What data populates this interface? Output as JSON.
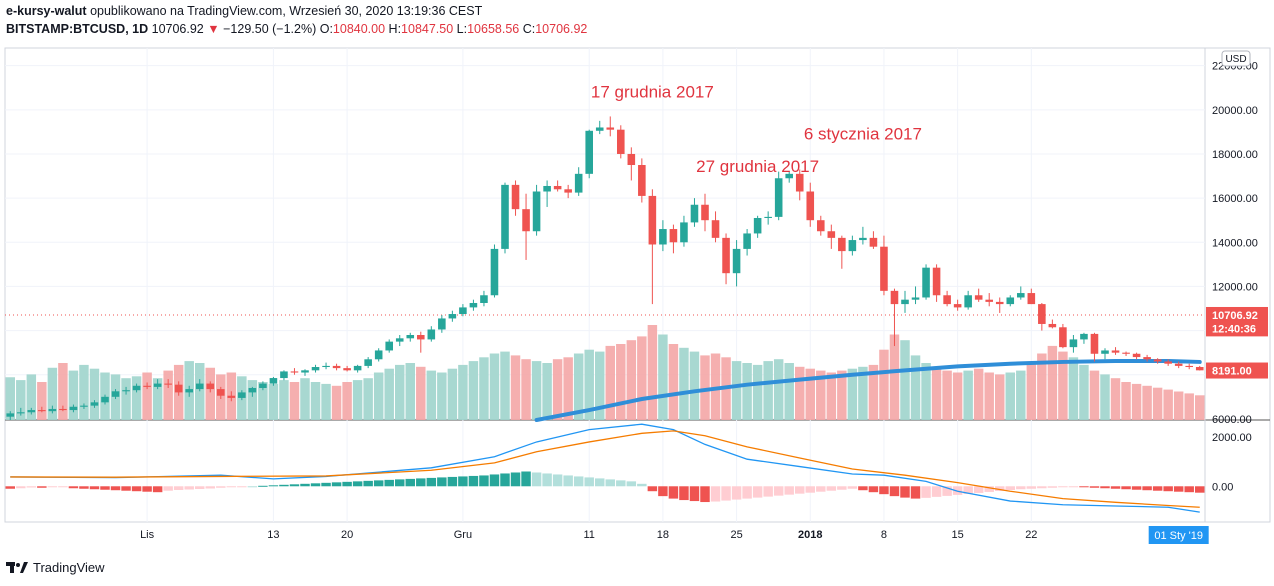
{
  "header": {
    "publisher": "e-kursy-walut",
    "published_on": "opublikowano na TradingView.com, Wrzesień 30, 2020 13:19:36 CEST",
    "symbol": "BITSTAMP:BTCUSD, 1D",
    "last": "10706.92",
    "change": "−129.50 (−1.2%)",
    "o_label": "O:",
    "o": "10840.00",
    "h_label": "H:",
    "h": "10847.50",
    "l_label": "L:",
    "l": "10658.56",
    "c_label": "C:",
    "c": "10706.92"
  },
  "footer": {
    "brand": "TradingView"
  },
  "colors": {
    "up": "#26a69a",
    "down": "#ef5350",
    "ma": "#2f8ed8",
    "macd": "#2196f3",
    "signal": "#f57c00",
    "annotation": "#e0343f"
  },
  "chart_data": {
    "type": "candlestick",
    "currency_badge": "USD",
    "price_ticks": [
      "6000.00",
      "8000.00",
      "10000.00",
      "12000.00",
      "14000.00",
      "16000.00",
      "18000.00",
      "20000.00",
      "22000.00"
    ],
    "price_tick_values": [
      6000,
      8000,
      10000,
      12000,
      14000,
      16000,
      18000,
      20000,
      22000
    ],
    "price_range": [
      5950,
      22800
    ],
    "price_labels": [
      {
        "text": "10706.92",
        "value": 10706.92,
        "color": "#ef5350"
      },
      {
        "text": "12:40:36",
        "value": 10100,
        "color": "#ef5350"
      },
      {
        "text": "8191.00",
        "value": 8191,
        "color": "#ef5350"
      }
    ],
    "macd_ticks": [
      "2000.00",
      "0.00"
    ],
    "macd_tick_values": [
      2000,
      0
    ],
    "macd_range": [
      -1450,
      2650
    ],
    "x_ticks": [
      {
        "text": "Lis",
        "index": 13
      },
      {
        "text": "13",
        "index": 25
      },
      {
        "text": "20",
        "index": 32
      },
      {
        "text": "Gru",
        "index": 43
      },
      {
        "text": "11",
        "index": 55
      },
      {
        "text": "18",
        "index": 62
      },
      {
        "text": "25",
        "index": 69
      },
      {
        "text": "2018",
        "index": 76,
        "bold": true
      },
      {
        "text": "8",
        "index": 83
      },
      {
        "text": "15",
        "index": 90
      },
      {
        "text": "22",
        "index": 97
      }
    ],
    "cursor_label": {
      "text": "01 Sty '19",
      "index": 111
    },
    "annotations": [
      {
        "text": "17 grudnia 2017",
        "index": 61,
        "value": 20550
      },
      {
        "text": "27 grudnia 2017",
        "index": 71,
        "value": 17180
      },
      {
        "text": "6 stycznia 2017",
        "index": 81,
        "value": 18650
      }
    ],
    "candles": [
      [
        6100,
        6350,
        5950,
        6250
      ],
      [
        6250,
        6500,
        6150,
        6300
      ],
      [
        6300,
        6500,
        6200,
        6400
      ],
      [
        6400,
        6550,
        6300,
        6350
      ],
      [
        6350,
        6600,
        6250,
        6450
      ],
      [
        6450,
        6600,
        6350,
        6400
      ],
      [
        6400,
        6650,
        6300,
        6550
      ],
      [
        6550,
        6700,
        6450,
        6600
      ],
      [
        6600,
        6850,
        6500,
        6750
      ],
      [
        6750,
        7100,
        6650,
        7000
      ],
      [
        7000,
        7350,
        6900,
        7250
      ],
      [
        7250,
        7450,
        7100,
        7300
      ],
      [
        7300,
        7600,
        7200,
        7500
      ],
      [
        7500,
        7650,
        7350,
        7450
      ],
      [
        7450,
        7800,
        7350,
        7600
      ],
      [
        7600,
        7800,
        7400,
        7550
      ],
      [
        7550,
        7700,
        7050,
        7200
      ],
      [
        7200,
        7500,
        7000,
        7350
      ],
      [
        7350,
        7800,
        7250,
        7600
      ],
      [
        7600,
        7700,
        7200,
        7350
      ],
      [
        7350,
        7450,
        6900,
        7050
      ],
      [
        7050,
        7250,
        6800,
        6950
      ],
      [
        6950,
        7300,
        6850,
        7200
      ],
      [
        7200,
        7450,
        7000,
        7400
      ],
      [
        7400,
        7700,
        7300,
        7600
      ],
      [
        7600,
        7900,
        7500,
        7850
      ],
      [
        7850,
        8200,
        7750,
        8150
      ],
      [
        8150,
        8300,
        8000,
        8100
      ],
      [
        8100,
        8250,
        7950,
        8200
      ],
      [
        8200,
        8450,
        8100,
        8350
      ],
      [
        8350,
        8550,
        8250,
        8400
      ],
      [
        8400,
        8500,
        8200,
        8300
      ],
      [
        8300,
        8400,
        8150,
        8200
      ],
      [
        8200,
        8450,
        8100,
        8400
      ],
      [
        8400,
        8800,
        8300,
        8700
      ],
      [
        8700,
        9200,
        8600,
        9100
      ],
      [
        9100,
        9600,
        9000,
        9500
      ],
      [
        9500,
        9800,
        9300,
        9650
      ],
      [
        9650,
        9900,
        9500,
        9800
      ],
      [
        9800,
        9950,
        9000,
        9600
      ],
      [
        9600,
        10200,
        9500,
        10050
      ],
      [
        10050,
        10700,
        9900,
        10550
      ],
      [
        10550,
        10900,
        10400,
        10750
      ],
      [
        10750,
        11200,
        10650,
        11050
      ],
      [
        11050,
        11400,
        10900,
        11250
      ],
      [
        11250,
        11800,
        11100,
        11600
      ],
      [
        11600,
        13900,
        11500,
        13700
      ],
      [
        13700,
        16700,
        13500,
        16600
      ],
      [
        16600,
        16800,
        15200,
        15500
      ],
      [
        15500,
        16200,
        13200,
        14500
      ],
      [
        14500,
        16600,
        14300,
        16300
      ],
      [
        16300,
        16800,
        15600,
        16550
      ],
      [
        16550,
        16800,
        16300,
        16400
      ],
      [
        16400,
        16600,
        16000,
        16250
      ],
      [
        16250,
        17400,
        16100,
        17100
      ],
      [
        17100,
        19100,
        16900,
        19050
      ],
      [
        19050,
        19500,
        18900,
        19200
      ],
      [
        19200,
        19700,
        18800,
        19100
      ],
      [
        19100,
        19300,
        17800,
        18000
      ],
      [
        18000,
        18300,
        16800,
        17500
      ],
      [
        17500,
        17800,
        15800,
        16100
      ],
      [
        16100,
        16400,
        11200,
        13900
      ],
      [
        13900,
        15000,
        13600,
        14600
      ],
      [
        14600,
        14800,
        13500,
        14000
      ],
      [
        14000,
        15200,
        13800,
        14900
      ],
      [
        14900,
        16000,
        14700,
        15700
      ],
      [
        15700,
        16200,
        14500,
        15000
      ],
      [
        15000,
        15400,
        14000,
        14200
      ],
      [
        14200,
        14400,
        12100,
        12600
      ],
      [
        12600,
        14100,
        12000,
        13700
      ],
      [
        13700,
        14600,
        13400,
        14400
      ],
      [
        14400,
        15200,
        14200,
        15100
      ],
      [
        15100,
        15400,
        14800,
        15150
      ],
      [
        15150,
        17200,
        15000,
        16900
      ],
      [
        16900,
        17200,
        16700,
        17100
      ],
      [
        17100,
        17300,
        15900,
        16300
      ],
      [
        16300,
        16700,
        14700,
        15000
      ],
      [
        15000,
        15200,
        14300,
        14500
      ],
      [
        14500,
        14800,
        13700,
        14200
      ],
      [
        14200,
        14300,
        12800,
        13600
      ],
      [
        13600,
        14300,
        13400,
        14100
      ],
      [
        14100,
        14700,
        13900,
        14200
      ],
      [
        14200,
        14500,
        13700,
        13800
      ],
      [
        13800,
        14300,
        11600,
        11800
      ],
      [
        11800,
        11900,
        9300,
        11200
      ],
      [
        11200,
        11800,
        10800,
        11400
      ],
      [
        11400,
        12000,
        11200,
        11500
      ],
      [
        11500,
        13000,
        11400,
        12850
      ],
      [
        12850,
        13000,
        11300,
        11600
      ],
      [
        11600,
        11800,
        11100,
        11200
      ],
      [
        11200,
        11400,
        10900,
        11050
      ],
      [
        11050,
        11800,
        10950,
        11600
      ],
      [
        11600,
        11900,
        11300,
        11400
      ],
      [
        11400,
        11700,
        11100,
        11300
      ],
      [
        11300,
        11500,
        10800,
        11200
      ],
      [
        11200,
        11600,
        11100,
        11500
      ],
      [
        11500,
        12000,
        11400,
        11700
      ],
      [
        11700,
        11900,
        11200,
        11200
      ],
      [
        11200,
        11250,
        10000,
        10300
      ],
      [
        10300,
        10500,
        10100,
        10150
      ],
      [
        10150,
        10300,
        9200,
        9250
      ],
      [
        9250,
        9800,
        9000,
        9600
      ],
      [
        9600,
        9900,
        9400,
        9850
      ],
      [
        9850,
        9900,
        8600,
        8950
      ],
      [
        8950,
        9200,
        8700,
        9100
      ],
      [
        9100,
        9250,
        8900,
        9000
      ],
      [
        9000,
        9050,
        8850,
        8950
      ],
      [
        8950,
        9000,
        8700,
        8800
      ],
      [
        8800,
        8900,
        8600,
        8700
      ],
      [
        8700,
        8750,
        8500,
        8600
      ],
      [
        8600,
        8700,
        8400,
        8500
      ],
      [
        8500,
        8600,
        8300,
        8400
      ],
      [
        8400,
        8500,
        8250,
        8350
      ],
      [
        8350,
        8400,
        8191,
        8200
      ]
    ],
    "moving_average": {
      "name": "",
      "points": [
        [
          50,
          5950
        ],
        [
          55,
          6400
        ],
        [
          60,
          6900
        ],
        [
          65,
          7250
        ],
        [
          70,
          7550
        ],
        [
          75,
          7780
        ],
        [
          80,
          8000
        ],
        [
          85,
          8200
        ],
        [
          90,
          8380
        ],
        [
          95,
          8500
        ],
        [
          100,
          8580
        ],
        [
          105,
          8620
        ],
        [
          110,
          8620
        ],
        [
          113,
          8580
        ]
      ]
    },
    "volume": [
      45,
      42,
      48,
      40,
      55,
      60,
      52,
      58,
      54,
      50,
      48,
      44,
      46,
      50,
      44,
      52,
      58,
      62,
      60,
      55,
      48,
      50,
      46,
      42,
      40,
      38,
      42,
      40,
      44,
      40,
      38,
      36,
      40,
      42,
      44,
      50,
      54,
      58,
      60,
      56,
      52,
      50,
      54,
      58,
      62,
      66,
      70,
      72,
      68,
      64,
      62,
      60,
      64,
      66,
      70,
      74,
      72,
      78,
      80,
      84,
      88,
      100,
      90,
      80,
      76,
      72,
      68,
      70,
      66,
      62,
      60,
      58,
      62,
      64,
      60,
      56,
      54,
      52,
      50,
      52,
      54,
      56,
      58,
      74,
      90,
      84,
      68,
      60,
      56,
      52,
      50,
      52,
      54,
      50,
      48,
      50,
      52,
      60,
      70,
      78,
      72,
      66,
      58,
      52,
      48,
      44,
      40,
      38,
      36,
      34,
      32,
      30,
      28,
      26
    ],
    "macd": {
      "name": "",
      "line": [
        [
          0,
          380
        ],
        [
          10,
          350
        ],
        [
          20,
          450
        ],
        [
          25,
          300
        ],
        [
          30,
          400
        ],
        [
          40,
          750
        ],
        [
          46,
          1200
        ],
        [
          50,
          1800
        ],
        [
          55,
          2300
        ],
        [
          60,
          2520
        ],
        [
          63,
          2300
        ],
        [
          66,
          1700
        ],
        [
          70,
          1100
        ],
        [
          75,
          800
        ],
        [
          80,
          500
        ],
        [
          83,
          450
        ],
        [
          87,
          200
        ],
        [
          90,
          -200
        ],
        [
          95,
          -600
        ],
        [
          100,
          -750
        ],
        [
          105,
          -800
        ],
        [
          110,
          -850
        ],
        [
          113,
          -1050
        ]
      ],
      "signal": [
        [
          0,
          380
        ],
        [
          10,
          370
        ],
        [
          20,
          400
        ],
        [
          30,
          420
        ],
        [
          40,
          650
        ],
        [
          46,
          950
        ],
        [
          50,
          1400
        ],
        [
          55,
          1800
        ],
        [
          60,
          2150
        ],
        [
          63,
          2250
        ],
        [
          66,
          2050
        ],
        [
          70,
          1600
        ],
        [
          75,
          1150
        ],
        [
          80,
          700
        ],
        [
          85,
          450
        ],
        [
          90,
          150
        ],
        [
          95,
          -200
        ],
        [
          100,
          -500
        ],
        [
          105,
          -650
        ],
        [
          110,
          -780
        ],
        [
          113,
          -850
        ]
      ],
      "histogram": [
        -100,
        -80,
        -50,
        -60,
        -40,
        -30,
        -80,
        -100,
        -120,
        -140,
        -160,
        -180,
        -200,
        -220,
        -240,
        -180,
        -150,
        -130,
        -110,
        -90,
        -60,
        -40,
        -20,
        0,
        20,
        40,
        60,
        80,
        100,
        120,
        140,
        160,
        180,
        200,
        220,
        240,
        260,
        280,
        300,
        320,
        340,
        360,
        380,
        400,
        420,
        440,
        480,
        520,
        560,
        600,
        560,
        520,
        480,
        440,
        400,
        360,
        320,
        280,
        240,
        200,
        100,
        -200,
        -400,
        -500,
        -560,
        -600,
        -640,
        -620,
        -580,
        -540,
        -500,
        -460,
        -420,
        -380,
        -340,
        -300,
        -260,
        -220,
        -180,
        -140,
        -100,
        -160,
        -240,
        -320,
        -400,
        -460,
        -500,
        -470,
        -430,
        -390,
        -350,
        -310,
        -270,
        -230,
        -190,
        -150,
        -120,
        -100,
        -80,
        -60,
        -40,
        -20,
        -40,
        -60,
        -80,
        -100,
        -120,
        -140,
        -160,
        -180,
        -200,
        -220,
        -240,
        -260
      ]
    }
  }
}
